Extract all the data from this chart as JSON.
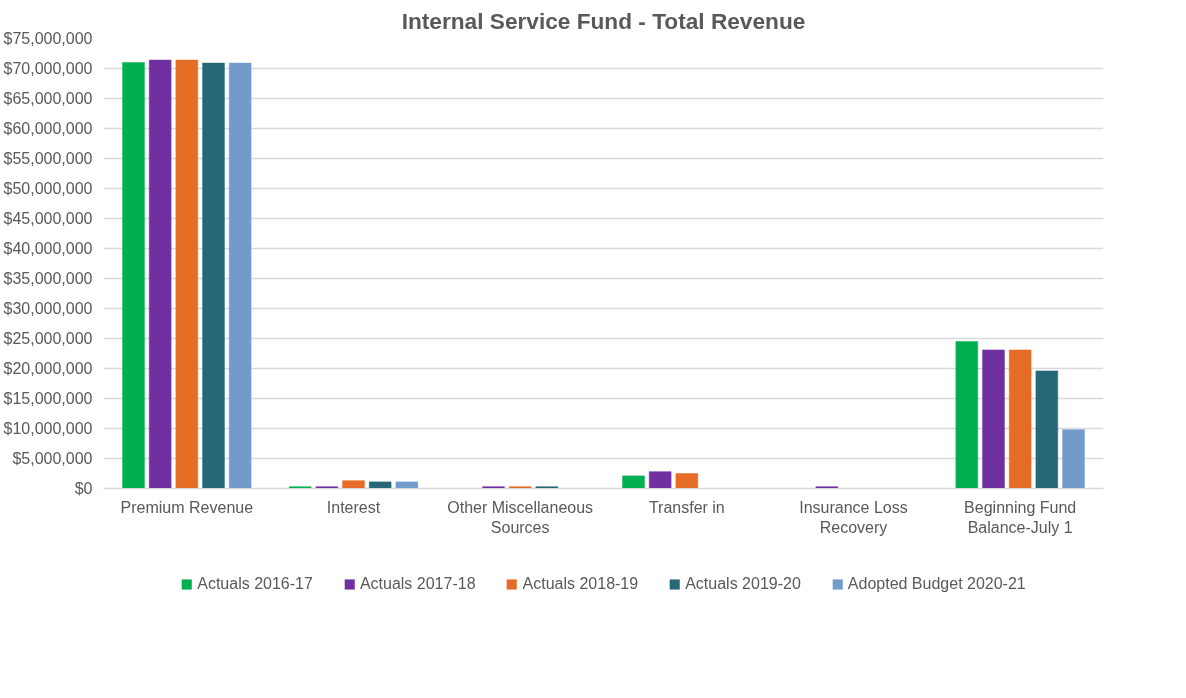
{
  "chart_data": {
    "type": "bar",
    "title": "Internal Service Fund - Total Revenue",
    "categories": [
      "Premium Revenue",
      "Interest",
      "Other Miscellaneous Sources",
      "Transfer in",
      "Insurance Loss Recovery",
      "Beginning Fund Balance-July 1"
    ],
    "series": [
      {
        "name": "Actuals 2016-17",
        "color": "#00b050",
        "values": [
          71000000,
          300000,
          null,
          2100000,
          null,
          24500000
        ]
      },
      {
        "name": "Actuals 2017-18",
        "color": "#7030a0",
        "values": [
          71400000,
          300000,
          300000,
          2800000,
          300000,
          23100000
        ]
      },
      {
        "name": "Actuals 2018-19",
        "color": "#e46c24",
        "values": [
          71400000,
          1300000,
          300000,
          2500000,
          null,
          23100000
        ]
      },
      {
        "name": "Actuals 2019-20",
        "color": "#276878",
        "values": [
          70900000,
          1100000,
          300000,
          null,
          null,
          19600000
        ]
      },
      {
        "name": "Adopted Budget 2020-21",
        "color": "#729bcc",
        "values": [
          70900000,
          1100000,
          null,
          null,
          null,
          9800000
        ]
      }
    ],
    "ylim": [
      0,
      75000000
    ],
    "yticks": [
      {
        "value": 0,
        "label": "$0"
      },
      {
        "value": 5000000,
        "label": "$5,000,000"
      },
      {
        "value": 10000000,
        "label": "$10,000,000"
      },
      {
        "value": 15000000,
        "label": "$15,000,000"
      },
      {
        "value": 20000000,
        "label": "$20,000,000"
      },
      {
        "value": 25000000,
        "label": "$25,000,000"
      },
      {
        "value": 30000000,
        "label": "$30,000,000"
      },
      {
        "value": 35000000,
        "label": "$35,000,000"
      },
      {
        "value": 40000000,
        "label": "$40,000,000"
      },
      {
        "value": 45000000,
        "label": "$45,000,000"
      },
      {
        "value": 50000000,
        "label": "$50,000,000"
      },
      {
        "value": 55000000,
        "label": "$55,000,000"
      },
      {
        "value": 60000000,
        "label": "$60,000,000"
      },
      {
        "value": 65000000,
        "label": "$65,000,000"
      },
      {
        "value": 70000000,
        "label": "$70,000,000"
      },
      {
        "value": 75000000,
        "label": "$75,000,000"
      }
    ],
    "grid": "y",
    "legend": "bottom"
  }
}
